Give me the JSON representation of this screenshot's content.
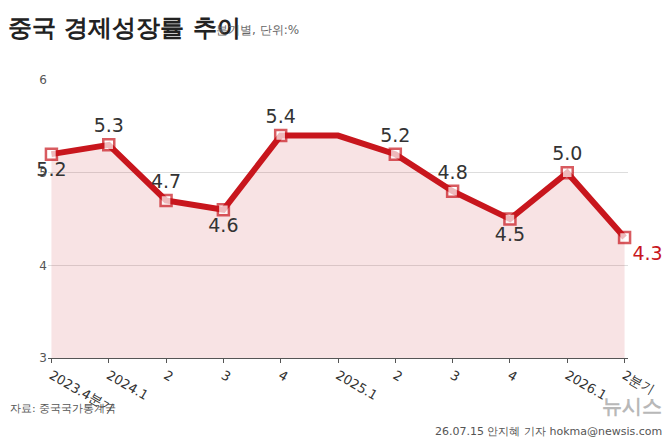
{
  "chart_data": {
    "type": "line",
    "title": "중국 경제성장률 추이",
    "subtitle": "분기별, 단위:%",
    "annotations": [
      "자료: 중국국가통계국",
      "26.07.15 안지혜 기자 hokma@newsis.com",
      "뉴시스"
    ],
    "categories": [
      "2023.4분기",
      "2024.1",
      "2",
      "3",
      "4",
      "2025.1",
      "2",
      "3",
      "4",
      "2026.1",
      "2분기"
    ],
    "values": [
      5.2,
      5.3,
      4.7,
      4.6,
      5.4,
      5.4,
      5.2,
      4.8,
      4.5,
      5.0,
      4.3
    ],
    "value_labels": [
      "5.2",
      "5.3",
      "4.7",
      "4.6",
      "5.4",
      null,
      "5.2",
      "4.8",
      "4.5",
      "5.0",
      "4.3"
    ],
    "color": "#c8161d",
    "ylim": [
      3,
      6
    ],
    "yticks": [
      3,
      4,
      5,
      6
    ],
    "grid": true,
    "data_labels": true,
    "marker": "square"
  }
}
